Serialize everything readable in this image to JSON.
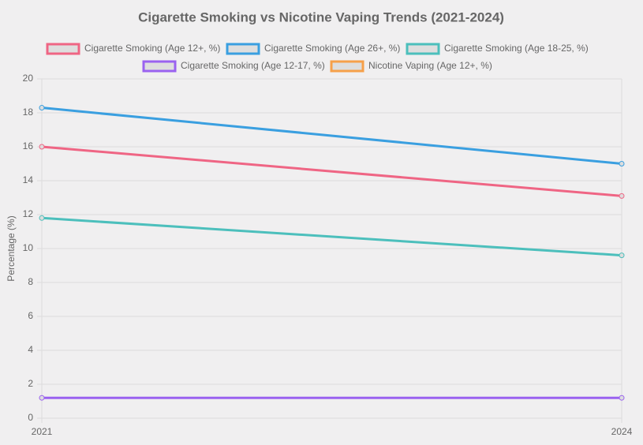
{
  "chart_data": {
    "type": "line",
    "title": "Cigarette Smoking vs Nicotine Vaping Trends (2021-2024)",
    "y_label": "Percentage (%)",
    "categories": [
      "2021",
      "2024"
    ],
    "series": [
      {
        "name": "Cigarette Smoking (Age 12+, %)",
        "color": "#ef6584",
        "values": [
          16.0,
          13.1
        ]
      },
      {
        "name": "Cigarette Smoking (Age 26+, %)",
        "color": "#3a9fe0",
        "values": [
          18.3,
          15.0
        ]
      },
      {
        "name": "Cigarette Smoking (Age 18-25, %)",
        "color": "#4cbfbc",
        "values": [
          11.8,
          9.6
        ]
      },
      {
        "name": "Cigarette Smoking (Age 12-17, %)",
        "color": "#9a62f0",
        "values": [
          1.2,
          1.2
        ]
      },
      {
        "name": "Nicotine Vaping (Age 12+, %)",
        "color": "#f6a04a",
        "values": [
          null,
          null
        ]
      }
    ],
    "ylim": [
      0,
      20
    ],
    "yticks": [
      0,
      2,
      4,
      6,
      8,
      10,
      12,
      14,
      16,
      18,
      20
    ],
    "grid": true,
    "legend": "top"
  }
}
